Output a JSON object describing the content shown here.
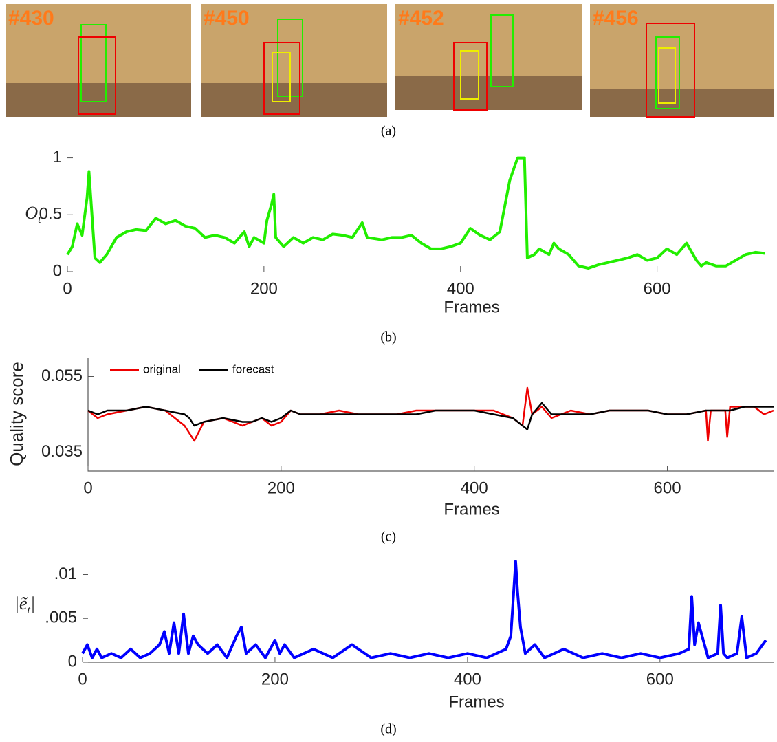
{
  "frames": [
    {
      "label": "#430"
    },
    {
      "label": "#450"
    },
    {
      "label": "#452"
    },
    {
      "label": "#456"
    }
  ],
  "captions": [
    "(a)",
    "(b)",
    "(c)",
    "(d)"
  ],
  "chart_data": [
    {
      "type": "line",
      "xlabel": "Frames",
      "ylabel": [
        "O",
        "t"
      ],
      "color": "#22ee00",
      "xlim": [
        0,
        715
      ],
      "ylim": [
        0,
        1.07
      ],
      "xticks": [
        0,
        200,
        400,
        600
      ],
      "yticks": [
        0,
        0.5,
        1
      ],
      "x": [
        0,
        5,
        10,
        15,
        20,
        22,
        25,
        28,
        33,
        40,
        50,
        60,
        70,
        80,
        90,
        100,
        110,
        120,
        130,
        140,
        150,
        160,
        170,
        180,
        185,
        190,
        200,
        203,
        208,
        210,
        212,
        220,
        230,
        240,
        250,
        260,
        270,
        280,
        290,
        300,
        305,
        320,
        330,
        340,
        350,
        360,
        370,
        380,
        390,
        400,
        410,
        420,
        430,
        440,
        450,
        458,
        465,
        468,
        475,
        480,
        490,
        495,
        500,
        510,
        520,
        530,
        540,
        550,
        560,
        570,
        580,
        590,
        600,
        610,
        620,
        630,
        640,
        645,
        650,
        660,
        670,
        680,
        690,
        700,
        710
      ],
      "values": [
        0.15,
        0.22,
        0.42,
        0.32,
        0.65,
        0.88,
        0.5,
        0.12,
        0.08,
        0.15,
        0.3,
        0.35,
        0.37,
        0.36,
        0.47,
        0.42,
        0.45,
        0.4,
        0.38,
        0.3,
        0.32,
        0.3,
        0.25,
        0.35,
        0.22,
        0.3,
        0.25,
        0.45,
        0.6,
        0.68,
        0.3,
        0.22,
        0.3,
        0.25,
        0.3,
        0.28,
        0.33,
        0.32,
        0.3,
        0.43,
        0.3,
        0.28,
        0.3,
        0.3,
        0.32,
        0.25,
        0.2,
        0.2,
        0.22,
        0.25,
        0.38,
        0.32,
        0.28,
        0.35,
        0.8,
        1.0,
        1.0,
        0.12,
        0.15,
        0.2,
        0.15,
        0.25,
        0.2,
        0.15,
        0.05,
        0.03,
        0.06,
        0.08,
        0.1,
        0.12,
        0.15,
        0.1,
        0.12,
        0.2,
        0.15,
        0.25,
        0.1,
        0.05,
        0.08,
        0.05,
        0.05,
        0.1,
        0.15,
        0.17,
        0.16
      ]
    },
    {
      "type": "line",
      "xlabel": "Frames",
      "ylabel": [
        "Quality score"
      ],
      "legend": "upper left",
      "xlim": [
        0,
        710
      ],
      "ylim": [
        0.03,
        0.06
      ],
      "xticks": [
        0,
        200,
        400,
        600
      ],
      "yticks": [
        0.035,
        0.055
      ],
      "x": [
        0,
        10,
        20,
        40,
        60,
        80,
        100,
        105,
        110,
        120,
        140,
        160,
        170,
        180,
        190,
        200,
        210,
        220,
        240,
        260,
        280,
        300,
        320,
        340,
        360,
        380,
        400,
        420,
        440,
        450,
        455,
        460,
        470,
        480,
        490,
        500,
        520,
        540,
        560,
        580,
        600,
        620,
        640,
        642,
        645,
        660,
        662,
        665,
        680,
        690,
        700,
        710
      ],
      "series": [
        {
          "name": "original",
          "color": "#ee0000",
          "values": [
            0.046,
            0.044,
            0.045,
            0.046,
            0.047,
            0.046,
            0.042,
            0.04,
            0.038,
            0.043,
            0.044,
            0.042,
            0.043,
            0.044,
            0.042,
            0.043,
            0.046,
            0.045,
            0.045,
            0.046,
            0.045,
            0.045,
            0.045,
            0.046,
            0.046,
            0.046,
            0.046,
            0.046,
            0.044,
            0.042,
            0.052,
            0.045,
            0.047,
            0.044,
            0.045,
            0.046,
            0.045,
            0.046,
            0.046,
            0.046,
            0.045,
            0.045,
            0.046,
            0.038,
            0.046,
            0.046,
            0.039,
            0.047,
            0.047,
            0.047,
            0.045,
            0.046
          ]
        },
        {
          "name": "forecast",
          "color": "#000000",
          "values": [
            0.046,
            0.045,
            0.046,
            0.046,
            0.047,
            0.046,
            0.045,
            0.044,
            0.042,
            0.043,
            0.044,
            0.043,
            0.043,
            0.044,
            0.043,
            0.044,
            0.046,
            0.045,
            0.045,
            0.045,
            0.045,
            0.045,
            0.045,
            0.045,
            0.046,
            0.046,
            0.046,
            0.045,
            0.044,
            0.042,
            0.041,
            0.045,
            0.048,
            0.045,
            0.045,
            0.045,
            0.045,
            0.046,
            0.046,
            0.046,
            0.045,
            0.045,
            0.046,
            0.046,
            0.046,
            0.046,
            0.046,
            0.046,
            0.047,
            0.047,
            0.047,
            0.047
          ]
        }
      ]
    },
    {
      "type": "line",
      "xlabel": "Frames",
      "ylabel": [
        "|ẽ",
        "t",
        "|"
      ],
      "color": "#0000ff",
      "xlim": [
        0,
        718
      ],
      "ylim": [
        0,
        0.012
      ],
      "xticks": [
        0,
        200,
        400,
        600
      ],
      "yticks": [
        {
          "value": 0,
          "label": "0"
        },
        {
          "value": 0.005,
          "label": ".005"
        },
        {
          "value": 0.01,
          "label": ".01"
        }
      ],
      "x": [
        0,
        5,
        10,
        15,
        20,
        30,
        40,
        50,
        60,
        70,
        80,
        85,
        90,
        95,
        100,
        105,
        110,
        115,
        120,
        130,
        140,
        150,
        160,
        165,
        170,
        180,
        190,
        200,
        205,
        210,
        220,
        240,
        260,
        280,
        300,
        320,
        340,
        360,
        380,
        400,
        420,
        440,
        445,
        450,
        452,
        455,
        460,
        470,
        480,
        500,
        520,
        540,
        560,
        580,
        600,
        620,
        630,
        633,
        636,
        640,
        650,
        660,
        663,
        666,
        670,
        680,
        685,
        690,
        700,
        710
      ],
      "values": [
        0.001,
        0.002,
        0.0005,
        0.0015,
        0.0005,
        0.001,
        0.0005,
        0.0015,
        0.0005,
        0.001,
        0.002,
        0.0035,
        0.001,
        0.0045,
        0.001,
        0.0055,
        0.001,
        0.003,
        0.002,
        0.001,
        0.002,
        0.0005,
        0.003,
        0.004,
        0.001,
        0.002,
        0.0005,
        0.0025,
        0.001,
        0.002,
        0.0005,
        0.0015,
        0.0005,
        0.002,
        0.0005,
        0.001,
        0.0005,
        0.001,
        0.0005,
        0.001,
        0.0005,
        0.0015,
        0.003,
        0.0115,
        0.008,
        0.004,
        0.001,
        0.002,
        0.0005,
        0.0015,
        0.0005,
        0.001,
        0.0005,
        0.001,
        0.0005,
        0.001,
        0.0015,
        0.0075,
        0.002,
        0.0045,
        0.0005,
        0.001,
        0.0065,
        0.001,
        0.0005,
        0.001,
        0.0052,
        0.0005,
        0.001,
        0.0025
      ]
    }
  ]
}
